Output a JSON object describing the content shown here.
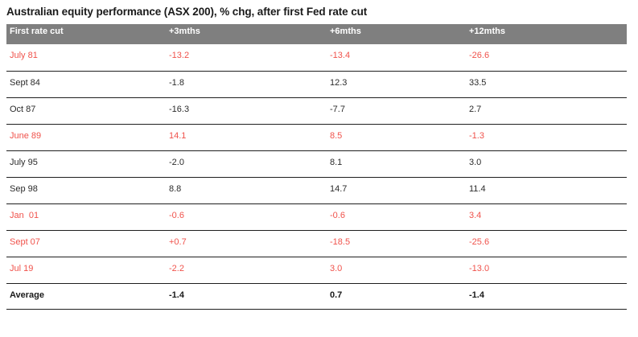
{
  "title": "Australian equity performance (ASX 200), % chg, after first Fed rate cut",
  "chart_data": {
    "type": "table",
    "title": "Australian equity performance (ASX 200), % chg, after first Fed rate cut",
    "columns": [
      "First rate cut",
      "+3mths",
      "+6mths",
      "+12mths"
    ],
    "rows": [
      {
        "cells": [
          "July 81",
          "-13.2",
          "-13.4",
          "-26.6"
        ],
        "red": true
      },
      {
        "cells": [
          "Sept 84",
          "-1.8",
          "12.3",
          "33.5"
        ],
        "red": false
      },
      {
        "cells": [
          "Oct 87",
          "-16.3",
          "-7.7",
          "2.7"
        ],
        "red": false
      },
      {
        "cells": [
          "June 89",
          "14.1",
          "8.5",
          "-1.3"
        ],
        "red": true
      },
      {
        "cells": [
          "July 95",
          "-2.0",
          "8.1",
          "3.0"
        ],
        "red": false
      },
      {
        "cells": [
          "Sep 98",
          "8.8",
          "14.7",
          "11.4"
        ],
        "red": false
      },
      {
        "cells": [
          "Jan  01",
          "-0.6",
          "-0.6",
          "3.4"
        ],
        "red": true
      },
      {
        "cells": [
          "Sept 07",
          "+0.7",
          "-18.5",
          "-25.6"
        ],
        "red": true
      },
      {
        "cells": [
          "Jul 19",
          "-2.2",
          "3.0",
          "-13.0"
        ],
        "red": true
      }
    ],
    "footer": {
      "cells": [
        "Average",
        "-1.4",
        "0.7",
        "-1.4"
      ]
    }
  },
  "colors": {
    "highlight_red": "#F0524B",
    "header_bg": "#7F7F7F",
    "header_text": "#FFFFFF",
    "row_text": "#2B2B2B",
    "line": "#1F1F1F",
    "title_text": "#1A1A1A"
  }
}
